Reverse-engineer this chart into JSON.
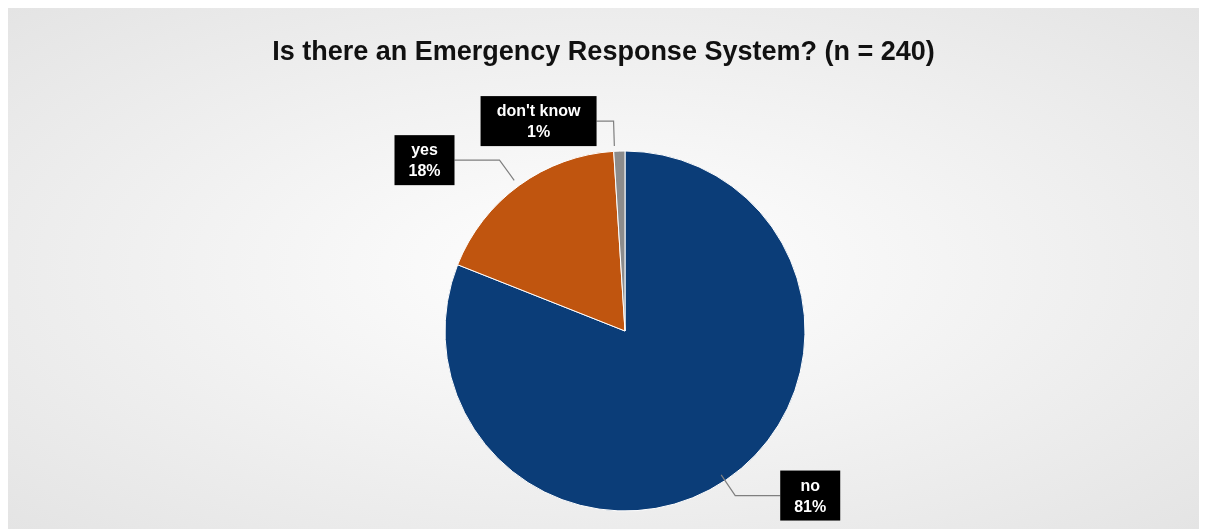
{
  "chart_data": {
    "type": "pie",
    "title": "Is there an Emergency Response System? (n = 240)",
    "categories": [
      "no",
      "yes",
      "don't know"
    ],
    "values": [
      81,
      18,
      1
    ],
    "value_labels": [
      "81%",
      "18%",
      "1%"
    ],
    "colors": [
      "#0b3d78",
      "#c0550f",
      "#8c8c8c"
    ]
  }
}
